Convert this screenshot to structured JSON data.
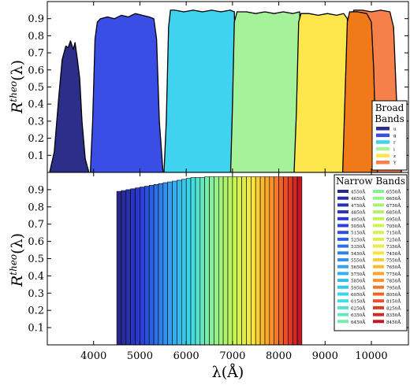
{
  "chart_data": [
    {
      "type": "area",
      "panel": "top",
      "ylabel": "R^theo(λ)",
      "xlim": [
        3000,
        10800
      ],
      "ylim": [
        0,
        1.0
      ],
      "yticks": [
        0.1,
        0.2,
        0.3,
        0.4,
        0.5,
        0.6,
        0.7,
        0.8,
        0.9
      ],
      "legend": {
        "title": [
          "Broad",
          "Bands"
        ],
        "placement": "right"
      },
      "series": [
        {
          "name": "u",
          "color": "#2d2d8a",
          "x": [
            3050,
            3150,
            3250,
            3320,
            3400,
            3450,
            3500,
            3560,
            3600,
            3650,
            3700,
            3750,
            3820,
            3900
          ],
          "y": [
            0.0,
            0.12,
            0.45,
            0.66,
            0.74,
            0.73,
            0.77,
            0.72,
            0.76,
            0.66,
            0.55,
            0.3,
            0.08,
            0.0
          ]
        },
        {
          "name": "g",
          "color": "#3a4ee6",
          "x": [
            3930,
            3980,
            4030,
            4080,
            4150,
            4300,
            4450,
            4600,
            4750,
            4900,
            5050,
            5200,
            5300,
            5360,
            5420,
            5500
          ],
          "y": [
            0.0,
            0.3,
            0.78,
            0.88,
            0.9,
            0.91,
            0.9,
            0.92,
            0.91,
            0.93,
            0.92,
            0.91,
            0.9,
            0.78,
            0.3,
            0.0
          ]
        },
        {
          "name": "r",
          "color": "#3fd3ef",
          "x": [
            5520,
            5570,
            5620,
            5660,
            5750,
            5950,
            6150,
            6350,
            6550,
            6750,
            6950,
            7040,
            7080,
            7120
          ],
          "y": [
            0.0,
            0.3,
            0.85,
            0.95,
            0.95,
            0.94,
            0.95,
            0.94,
            0.95,
            0.94,
            0.95,
            0.94,
            0.5,
            0.0
          ]
        },
        {
          "name": "i",
          "color": "#a6f29b",
          "x": [
            6960,
            7000,
            7040,
            7100,
            7300,
            7500,
            7700,
            7900,
            8100,
            8300,
            8450,
            8520,
            8560
          ],
          "y": [
            0.0,
            0.4,
            0.88,
            0.94,
            0.94,
            0.93,
            0.94,
            0.93,
            0.94,
            0.93,
            0.94,
            0.5,
            0.0
          ]
        },
        {
          "name": "z",
          "color": "#fde74c",
          "x": [
            8330,
            8380,
            8430,
            8480,
            8650,
            8850,
            9050,
            9250,
            9400,
            9480,
            9530,
            9560
          ],
          "y": [
            0.0,
            0.35,
            0.88,
            0.93,
            0.93,
            0.92,
            0.93,
            0.92,
            0.93,
            0.9,
            0.3,
            0.0
          ]
        },
        {
          "name": "Y",
          "color": "#f5804a",
          "x": [
            9460,
            9510,
            9560,
            9620,
            9800,
            10000,
            10200,
            10400,
            10480,
            10540,
            10600,
            10650
          ],
          "y": [
            0.0,
            0.45,
            0.9,
            0.95,
            0.95,
            0.94,
            0.95,
            0.94,
            0.85,
            0.45,
            0.1,
            0.0
          ]
        },
        {
          "name": "",
          "color": "#f07a1a",
          "x": [
            9380,
            9430,
            9480,
            9530,
            9700,
            9900,
            10000,
            10050,
            10090,
            10130
          ],
          "y": [
            0.0,
            0.45,
            0.88,
            0.94,
            0.94,
            0.93,
            0.88,
            0.6,
            0.2,
            0.0
          ]
        }
      ]
    },
    {
      "type": "area",
      "panel": "bottom",
      "xlabel": "λ(Å)",
      "ylabel": "R^theo(λ)",
      "xlim": [
        3000,
        10800
      ],
      "ylim": [
        0,
        1.0
      ],
      "xticks": [
        4000,
        5000,
        6000,
        7000,
        8000,
        9000,
        10000
      ],
      "yticks": [
        0.1,
        0.2,
        0.3,
        0.4,
        0.5,
        0.6,
        0.7,
        0.8,
        0.9
      ],
      "legend": {
        "title": "Narrow Bands",
        "placement": "top-right"
      },
      "band_width": 100,
      "bands": [
        {
          "label": "4550Å",
          "center": 4550,
          "peak": 0.89
        },
        {
          "label": "4650Å",
          "center": 4650,
          "peak": 0.895
        },
        {
          "label": "4750Å",
          "center": 4750,
          "peak": 0.9
        },
        {
          "label": "4850Å",
          "center": 4850,
          "peak": 0.905
        },
        {
          "label": "4950Å",
          "center": 4950,
          "peak": 0.91
        },
        {
          "label": "5050Å",
          "center": 5050,
          "peak": 0.915
        },
        {
          "label": "5150Å",
          "center": 5150,
          "peak": 0.92
        },
        {
          "label": "5250Å",
          "center": 5250,
          "peak": 0.925
        },
        {
          "label": "5350Å",
          "center": 5350,
          "peak": 0.93
        },
        {
          "label": "5450Å",
          "center": 5450,
          "peak": 0.935
        },
        {
          "label": "5550Å",
          "center": 5550,
          "peak": 0.94
        },
        {
          "label": "5650Å",
          "center": 5650,
          "peak": 0.945
        },
        {
          "label": "5750Å",
          "center": 5750,
          "peak": 0.95
        },
        {
          "label": "5850Å",
          "center": 5850,
          "peak": 0.955
        },
        {
          "label": "5950Å",
          "center": 5950,
          "peak": 0.96
        },
        {
          "label": "6050Å",
          "center": 6050,
          "peak": 0.965
        },
        {
          "label": "6150Å",
          "center": 6150,
          "peak": 0.97
        },
        {
          "label": "6250Å",
          "center": 6250,
          "peak": 0.97
        },
        {
          "label": "6350Å",
          "center": 6350,
          "peak": 0.97
        },
        {
          "label": "6450Å",
          "center": 6450,
          "peak": 0.975
        },
        {
          "label": "6550Å",
          "center": 6550,
          "peak": 0.975
        },
        {
          "label": "6650Å",
          "center": 6650,
          "peak": 0.975
        },
        {
          "label": "6750Å",
          "center": 6750,
          "peak": 0.975
        },
        {
          "label": "6850Å",
          "center": 6850,
          "peak": 0.975
        },
        {
          "label": "6950Å",
          "center": 6950,
          "peak": 0.975
        },
        {
          "label": "7050Å",
          "center": 7050,
          "peak": 0.975
        },
        {
          "label": "7150Å",
          "center": 7150,
          "peak": 0.975
        },
        {
          "label": "7250Å",
          "center": 7250,
          "peak": 0.975
        },
        {
          "label": "7350Å",
          "center": 7350,
          "peak": 0.975
        },
        {
          "label": "7450Å",
          "center": 7450,
          "peak": 0.975
        },
        {
          "label": "7550Å",
          "center": 7550,
          "peak": 0.975
        },
        {
          "label": "7650Å",
          "center": 7650,
          "peak": 0.975
        },
        {
          "label": "7750Å",
          "center": 7750,
          "peak": 0.975
        },
        {
          "label": "7850Å",
          "center": 7850,
          "peak": 0.975
        },
        {
          "label": "7950Å",
          "center": 7950,
          "peak": 0.975
        },
        {
          "label": "8050Å",
          "center": 8050,
          "peak": 0.975
        },
        {
          "label": "8150Å",
          "center": 8150,
          "peak": 0.975
        },
        {
          "label": "8250Å",
          "center": 8250,
          "peak": 0.975
        },
        {
          "label": "8350Å",
          "center": 8350,
          "peak": 0.975
        },
        {
          "label": "8450Å",
          "center": 8450,
          "peak": 0.975
        }
      ]
    }
  ]
}
